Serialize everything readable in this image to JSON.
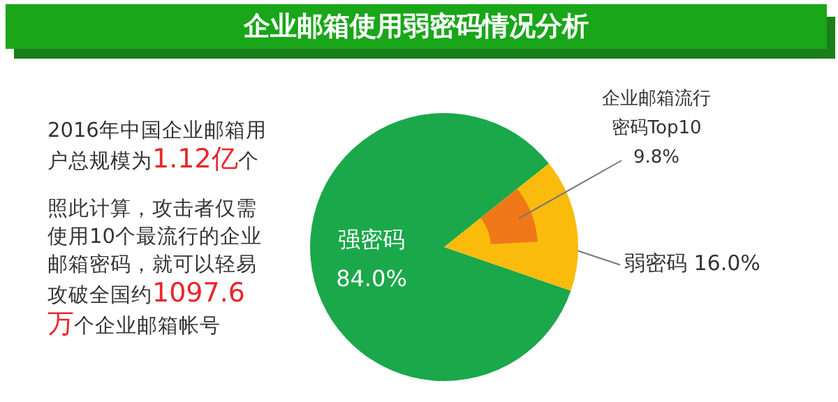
{
  "chart_data": {
    "type": "pie",
    "title": "企业邮箱使用弱密码情况分析",
    "categories": [
      "强密码",
      "弱密码"
    ],
    "series": [
      {
        "values": [
          84.0,
          16.0
        ],
        "colors": [
          "#1aa84a",
          "#fbbb0c"
        ],
        "value_labels": [
          "84.0%",
          "16.0%"
        ]
      },
      {
        "name": "企业邮箱流行密码Top10",
        "type": "pie",
        "color": "#f07818",
        "values": [
          null,
          9.8
        ],
        "value_labels": [
          null,
          "9.8%"
        ]
      }
    ],
    "annotations": [
      "2016年中国企业邮箱用户总规模为1.12亿个",
      "照此计算，攻击者仅需使用10个最流行的企业邮箱密码，就可以轻易攻破全国约1097.6万个企业邮箱帐号"
    ],
    "legend": false
  }
}
